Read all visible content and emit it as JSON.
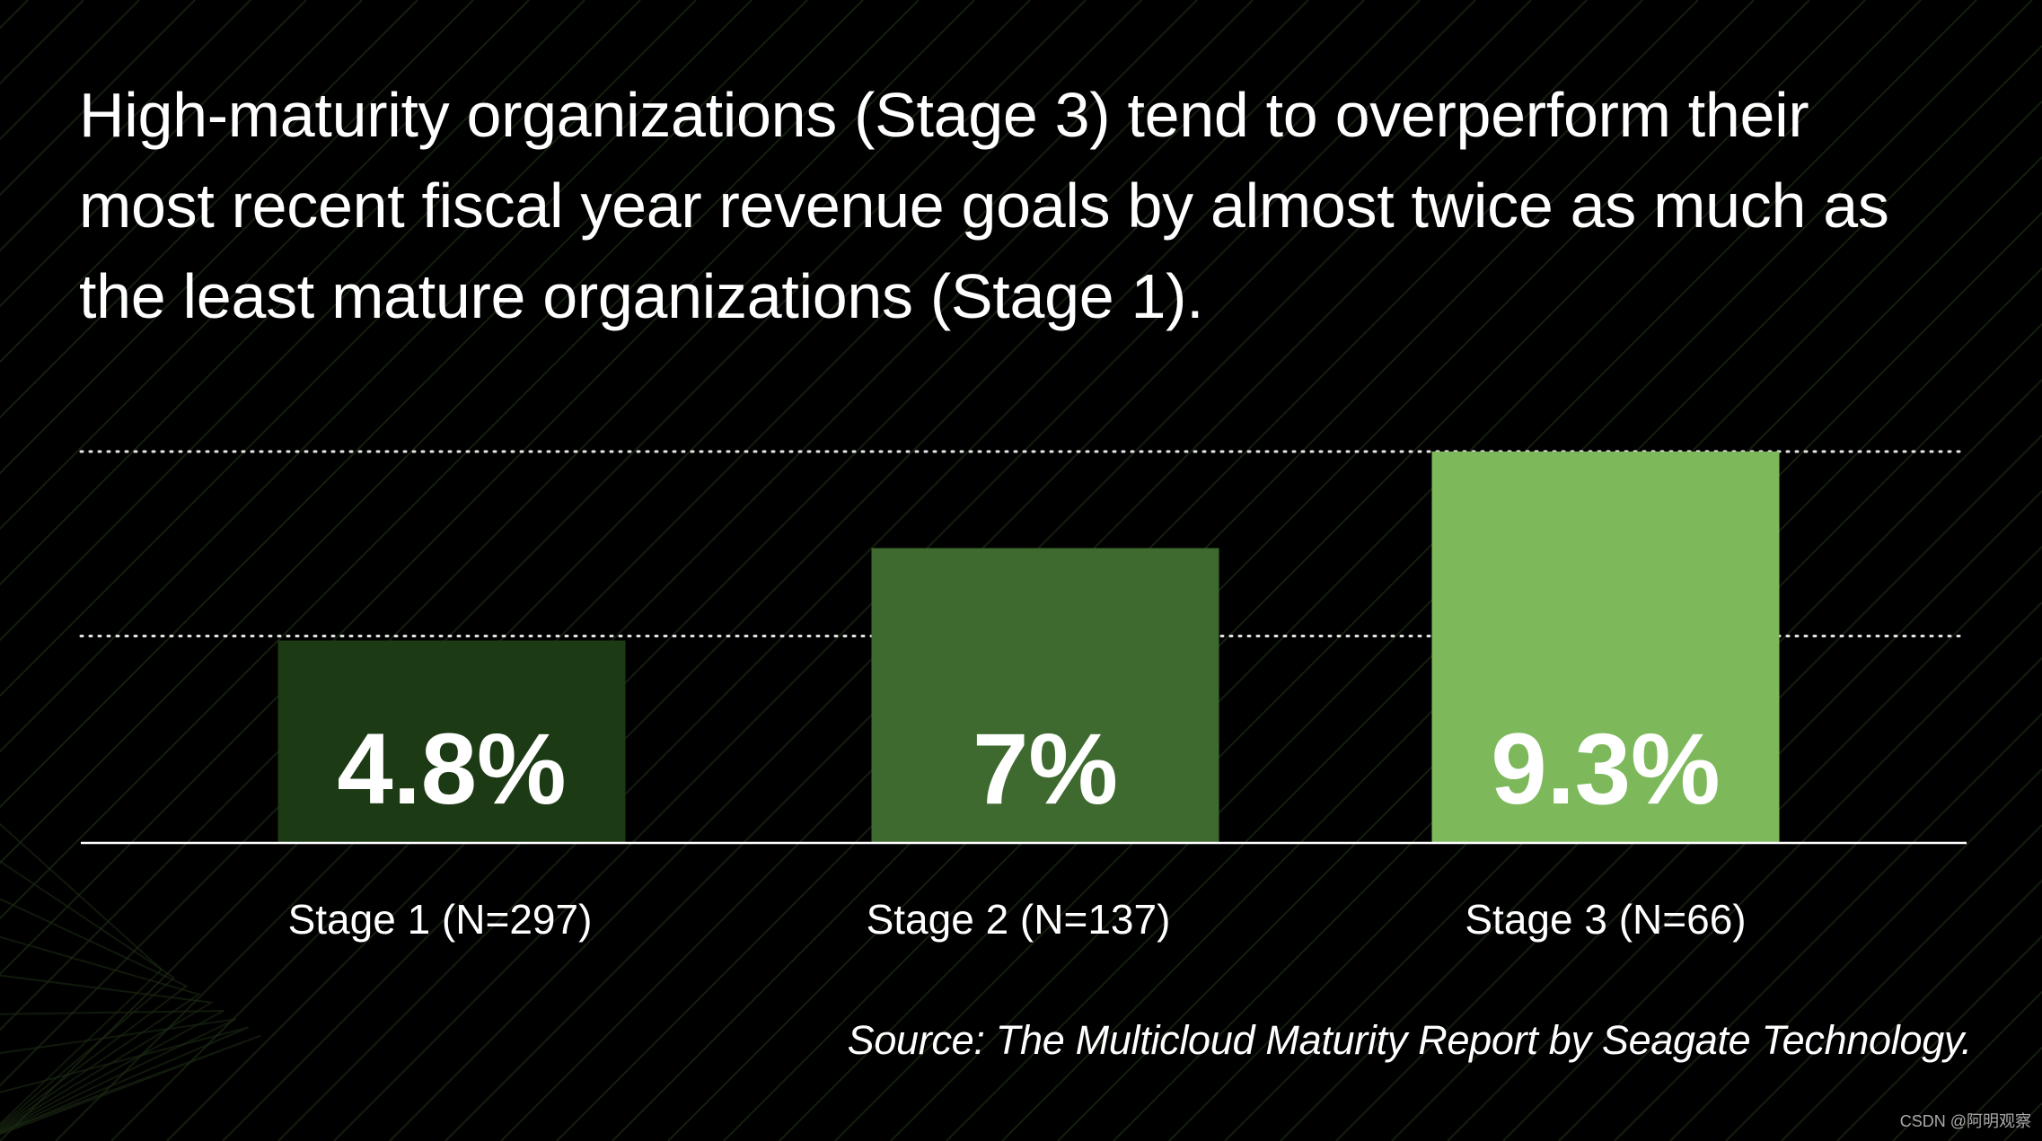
{
  "headline": {
    "line1": "High-maturity organizations (Stage 3) tend to overperform their",
    "line2": "most recent fiscal year revenue goals by almost twice as much as",
    "line3": "the least mature organizations (Stage 1)."
  },
  "chart_data": {
    "type": "bar",
    "title": "High-maturity organizations (Stage 3) tend to overperform their most recent fiscal year revenue goals by almost twice as much as the least mature organizations (Stage 1).",
    "categories": [
      "Stage 1 (N=297)",
      "Stage 2 (N=137)",
      "Stage 3 (N=66)"
    ],
    "values": [
      4.8,
      7,
      9.3
    ],
    "value_labels": [
      "4.8%",
      "7%",
      "9.3%"
    ],
    "bar_colors": [
      "#1c3a14",
      "#3e6a2f",
      "#7db95b"
    ],
    "gridlines": [
      4.8,
      9.3
    ],
    "grid_style": "dotted",
    "xlabel": "",
    "ylabel": "",
    "ylim": [
      0,
      9.3
    ]
  },
  "source": "Source: The Multicloud Maturity Report by Seagate Technology.",
  "watermark": "CSDN @阿明观察",
  "colors": {
    "background": "#000000",
    "text": "#ffffff",
    "pattern": "#1b2a14"
  }
}
